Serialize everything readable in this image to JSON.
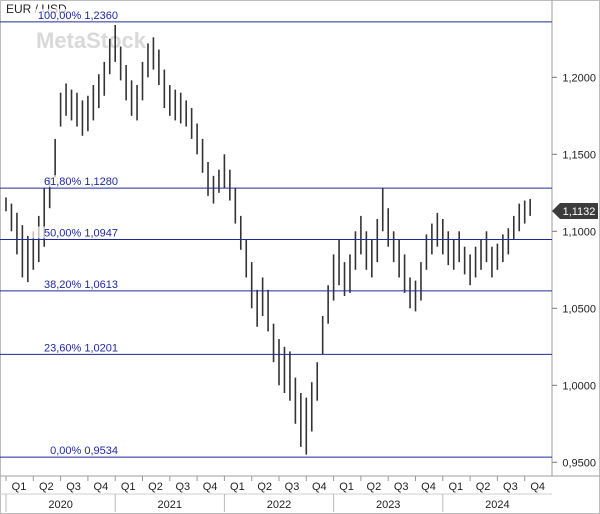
{
  "title": "EUR / USD",
  "watermark": "MetaStock",
  "chart_data": {
    "type": "bar",
    "title": "EUR / USD",
    "xlabel": "",
    "ylabel": "",
    "ylim": [
      0.945,
      1.245
    ],
    "y_ticks": [
      "1,2000",
      "1,1500",
      "1,1000",
      "1,0500",
      "1,0000",
      "0,9500"
    ],
    "y_tick_values": [
      1.2,
      1.15,
      1.1,
      1.05,
      1.0,
      0.95
    ],
    "quarters": [
      "Q1",
      "Q2",
      "Q3",
      "Q4",
      "Q1",
      "Q2",
      "Q3",
      "Q4",
      "Q1",
      "Q2",
      "Q3",
      "Q4",
      "Q1",
      "Q2",
      "Q3",
      "Q4",
      "Q1",
      "Q2",
      "Q3",
      "Q4"
    ],
    "years": [
      "2020",
      "2021",
      "2022",
      "2023",
      "2024"
    ],
    "last_price": {
      "value": 1.1132,
      "label": "1,1132"
    },
    "fib_levels": [
      {
        "label": "100,00% 1,2360",
        "value": 1.236
      },
      {
        "label": "61,80% 1,1280",
        "value": 1.128
      },
      {
        "label": "50,00% 1,0947",
        "value": 1.0947
      },
      {
        "label": "38,20% 1,0613",
        "value": 1.0613
      },
      {
        "label": "23,60% 1,0201",
        "value": 1.0201
      },
      {
        "label": "0,00% 0,9534",
        "value": 0.9534
      }
    ],
    "series": [
      {
        "values": [
          [
            2020.0,
            1.113,
            1.122
          ],
          [
            2020.05,
            1.1,
            1.118
          ],
          [
            2020.1,
            1.085,
            1.112
          ],
          [
            2020.15,
            1.07,
            1.104
          ],
          [
            2020.2,
            1.067,
            1.097
          ],
          [
            2020.25,
            1.075,
            1.1
          ],
          [
            2020.3,
            1.08,
            1.11
          ],
          [
            2020.35,
            1.09,
            1.128
          ],
          [
            2020.4,
            1.115,
            1.135
          ],
          [
            2020.45,
            1.135,
            1.16
          ],
          [
            2020.5,
            1.168,
            1.19
          ],
          [
            2020.55,
            1.175,
            1.196
          ],
          [
            2020.6,
            1.172,
            1.192
          ],
          [
            2020.65,
            1.168,
            1.19
          ],
          [
            2020.7,
            1.162,
            1.185
          ],
          [
            2020.75,
            1.165,
            1.188
          ],
          [
            2020.8,
            1.172,
            1.195
          ],
          [
            2020.85,
            1.18,
            1.202
          ],
          [
            2020.9,
            1.188,
            1.21
          ],
          [
            2020.95,
            1.202,
            1.225
          ],
          [
            2021.0,
            1.21,
            1.234
          ],
          [
            2021.05,
            1.198,
            1.22
          ],
          [
            2021.1,
            1.185,
            1.208
          ],
          [
            2021.15,
            1.175,
            1.198
          ],
          [
            2021.2,
            1.172,
            1.195
          ],
          [
            2021.25,
            1.185,
            1.21
          ],
          [
            2021.3,
            1.2,
            1.222
          ],
          [
            2021.35,
            1.205,
            1.226
          ],
          [
            2021.4,
            1.195,
            1.218
          ],
          [
            2021.45,
            1.18,
            1.205
          ],
          [
            2021.5,
            1.175,
            1.195
          ],
          [
            2021.55,
            1.172,
            1.192
          ],
          [
            2021.6,
            1.17,
            1.19
          ],
          [
            2021.65,
            1.168,
            1.185
          ],
          [
            2021.7,
            1.16,
            1.18
          ],
          [
            2021.75,
            1.15,
            1.17
          ],
          [
            2021.8,
            1.138,
            1.16
          ],
          [
            2021.85,
            1.123,
            1.145
          ],
          [
            2021.9,
            1.118,
            1.136
          ],
          [
            2021.95,
            1.125,
            1.14
          ],
          [
            2022.0,
            1.128,
            1.15
          ],
          [
            2022.05,
            1.12,
            1.14
          ],
          [
            2022.1,
            1.105,
            1.128
          ],
          [
            2022.15,
            1.088,
            1.11
          ],
          [
            2022.2,
            1.07,
            1.095
          ],
          [
            2022.25,
            1.05,
            1.08
          ],
          [
            2022.3,
            1.038,
            1.062
          ],
          [
            2022.35,
            1.045,
            1.07
          ],
          [
            2022.4,
            1.035,
            1.062
          ],
          [
            2022.45,
            1.015,
            1.04
          ],
          [
            2022.5,
            1.0,
            1.03
          ],
          [
            2022.55,
            0.995,
            1.025
          ],
          [
            2022.6,
            0.99,
            1.022
          ],
          [
            2022.65,
            0.975,
            1.005
          ],
          [
            2022.7,
            0.96,
            0.995
          ],
          [
            2022.75,
            0.955,
            0.992
          ],
          [
            2022.8,
            0.97,
            1.002
          ],
          [
            2022.85,
            0.99,
            1.015
          ],
          [
            2022.9,
            1.02,
            1.045
          ],
          [
            2022.95,
            1.04,
            1.065
          ],
          [
            2023.0,
            1.055,
            1.085
          ],
          [
            2023.05,
            1.065,
            1.095
          ],
          [
            2023.1,
            1.058,
            1.08
          ],
          [
            2023.15,
            1.06,
            1.085
          ],
          [
            2023.2,
            1.075,
            1.1
          ],
          [
            2023.25,
            1.085,
            1.11
          ],
          [
            2023.3,
            1.075,
            1.1
          ],
          [
            2023.35,
            1.07,
            1.095
          ],
          [
            2023.4,
            1.08,
            1.108
          ],
          [
            2023.45,
            1.1,
            1.128
          ],
          [
            2023.5,
            1.09,
            1.115
          ],
          [
            2023.55,
            1.08,
            1.1
          ],
          [
            2023.6,
            1.07,
            1.095
          ],
          [
            2023.65,
            1.06,
            1.085
          ],
          [
            2023.7,
            1.05,
            1.07
          ],
          [
            2023.75,
            1.048,
            1.068
          ],
          [
            2023.8,
            1.055,
            1.08
          ],
          [
            2023.85,
            1.075,
            1.098
          ],
          [
            2023.9,
            1.085,
            1.105
          ],
          [
            2023.95,
            1.09,
            1.112
          ],
          [
            2024.0,
            1.085,
            1.108
          ],
          [
            2024.05,
            1.078,
            1.1
          ],
          [
            2024.1,
            1.075,
            1.095
          ],
          [
            2024.15,
            1.08,
            1.1
          ],
          [
            2024.2,
            1.072,
            1.09
          ],
          [
            2024.25,
            1.065,
            1.085
          ],
          [
            2024.3,
            1.07,
            1.09
          ],
          [
            2024.35,
            1.075,
            1.095
          ],
          [
            2024.4,
            1.08,
            1.1
          ],
          [
            2024.45,
            1.07,
            1.09
          ],
          [
            2024.5,
            1.075,
            1.092
          ],
          [
            2024.55,
            1.08,
            1.098
          ],
          [
            2024.6,
            1.085,
            1.102
          ],
          [
            2024.65,
            1.095,
            1.11
          ],
          [
            2024.7,
            1.1,
            1.118
          ],
          [
            2024.75,
            1.105,
            1.12
          ],
          [
            2024.8,
            1.11,
            1.121
          ]
        ]
      }
    ]
  }
}
